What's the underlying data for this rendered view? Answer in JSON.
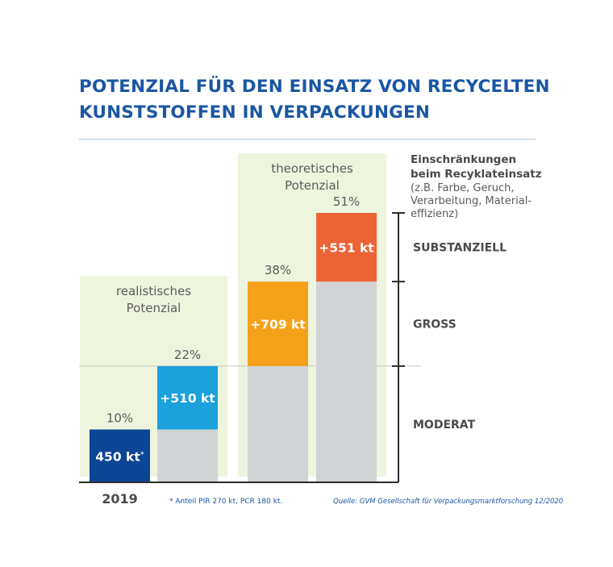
{
  "title": {
    "line1": "POTENZIAL FÜR DEN EINSATZ VON RECYCELTEN",
    "line2": "KUNSTSTOFFEN IN VERPACKUNGEN"
  },
  "colors": {
    "title_blue": "#1a56a3",
    "panel_green": "#eef5df",
    "bar_2019": "#0c4595",
    "bar_realistic": "#1ba1dc",
    "bar_theoretical_1": "#f6a11a",
    "bar_theoretical_2": "#ec6336",
    "bar_base": "#d2d3d5",
    "text_gray": "#5a5a5a"
  },
  "chart_data": {
    "type": "bar",
    "stacked": true,
    "unit": "%",
    "ylim": [
      0,
      51
    ],
    "panels": [
      {
        "label_line1": "realistisches",
        "label_line2": "Potenzial",
        "bars": [
          1
        ]
      },
      {
        "label_line1": "theoretisches",
        "label_line2": "Potenzial",
        "bars": [
          2,
          3
        ]
      }
    ],
    "bars": [
      {
        "category": "2019",
        "total_pct": 10,
        "total_label": "10%",
        "base_pct": 0,
        "added_pct": 10,
        "added_label": "450 kt",
        "added_label_sup": "*",
        "color_key": "bar_2019"
      },
      {
        "category": "",
        "total_pct": 22,
        "total_label": "22%",
        "base_pct": 10,
        "added_pct": 12,
        "added_label": "+510 kt",
        "added_label_sup": "",
        "color_key": "bar_realistic"
      },
      {
        "category": "",
        "total_pct": 38,
        "total_label": "38%",
        "base_pct": 22,
        "added_pct": 16,
        "added_label": "+709 kt",
        "added_label_sup": "",
        "color_key": "bar_theoretical_1"
      },
      {
        "category": "",
        "total_pct": 51,
        "total_label": "51%",
        "base_pct": 38,
        "added_pct": 13,
        "added_label": "+551 kt",
        "added_label_sup": "",
        "color_key": "bar_theoretical_2"
      }
    ],
    "scale": {
      "ticks_pct": [
        0,
        22,
        38,
        51
      ],
      "heading_bold_1": "Einschränkungen",
      "heading_bold_2": "beim Recyklateinsatz",
      "heading_lines": [
        "(z.B. Farbe, Geruch,",
        "Verarbeitung, Material-",
        "effizienz)"
      ],
      "bands": [
        {
          "label": "MODERAT",
          "from_pct": 0,
          "to_pct": 22
        },
        {
          "label": "GROSS",
          "from_pct": 22,
          "to_pct": 38
        },
        {
          "label": "SUBSTANZIELL",
          "from_pct": 38,
          "to_pct": 51
        }
      ]
    },
    "reference_line_pct": 22
  },
  "footnote": "* Anteil PIR 270 kt, PCR 180 kt.",
  "source": "Quelle: GVM Gesellschaft für Verpackungsmarktforschung 12/2020"
}
